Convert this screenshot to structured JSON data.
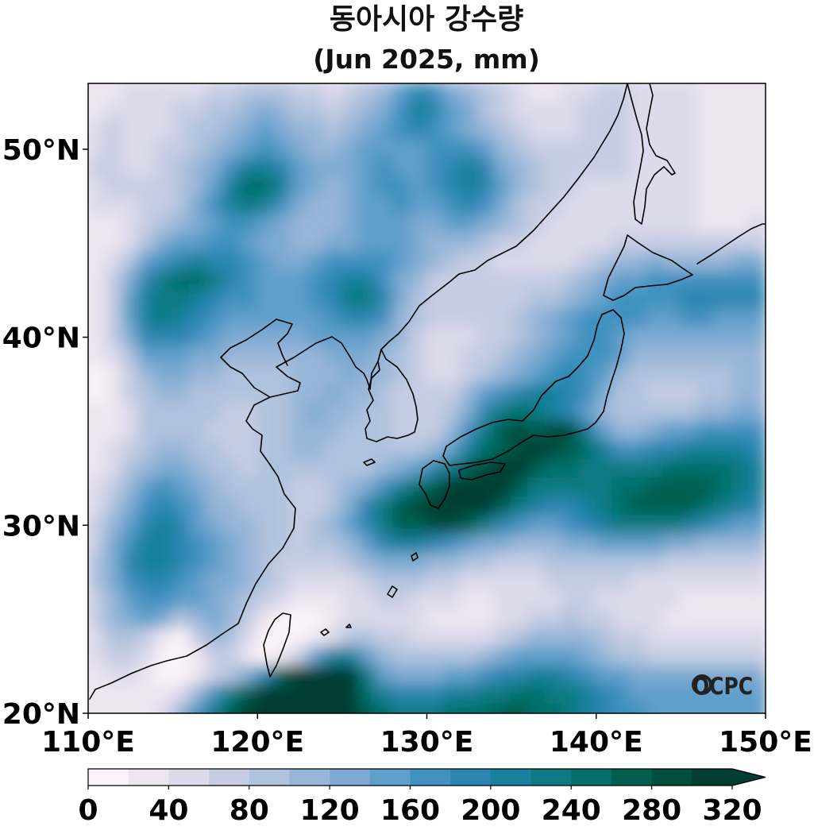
{
  "title": {
    "line1": "동아시아 강수량",
    "line2": "(Jun 2025, mm)"
  },
  "logo": "OCPC",
  "chart_data": {
    "type": "heatmap",
    "title": "동아시아 강수량 (Jun 2025, mm)",
    "xlabel": "",
    "ylabel": "",
    "xlim": [
      110,
      150
    ],
    "ylim": [
      20,
      53.5
    ],
    "x_ticks": [
      {
        "value": 110,
        "label": "110°E"
      },
      {
        "value": 120,
        "label": "120°E"
      },
      {
        "value": 130,
        "label": "130°E"
      },
      {
        "value": 140,
        "label": "140°E"
      },
      {
        "value": 150,
        "label": "150°E"
      }
    ],
    "y_ticks": [
      {
        "value": 20,
        "label": "20°N"
      },
      {
        "value": 30,
        "label": "30°N"
      },
      {
        "value": 40,
        "label": "40°N"
      },
      {
        "value": 50,
        "label": "50°N"
      }
    ],
    "colorbar": {
      "min": 0,
      "max": 320,
      "step": 20,
      "extend": "max",
      "tick_values": [
        0,
        40,
        80,
        120,
        160,
        200,
        240,
        280,
        320
      ],
      "tick_labels": [
        "0",
        "40",
        "80",
        "120",
        "160",
        "200",
        "240",
        "280",
        "320"
      ],
      "colors": [
        "#fbf3fa",
        "#ede6f1",
        "#dcdaeb",
        "#c6cde3",
        "#b0c3de",
        "#98b6d8",
        "#7eaad2",
        "#5f9fcb",
        "#3f91c0",
        "#2a86b0",
        "#17809c",
        "#0b7a83",
        "#05706b",
        "#025f50",
        "#014d3e",
        "#013e31"
      ]
    },
    "grid_step_deg": 1,
    "lon_start": 110,
    "lat_start": 53,
    "grid_mm": [
      [
        30,
        35,
        40,
        40,
        45,
        50,
        55,
        60,
        70,
        80,
        90,
        80,
        70,
        60,
        50,
        60,
        80,
        110,
        150,
        190,
        170,
        130,
        100,
        80,
        60,
        40,
        30,
        30,
        40,
        50,
        60,
        60,
        50,
        45,
        40,
        40,
        35,
        30,
        30,
        30
      ],
      [
        35,
        40,
        45,
        45,
        50,
        60,
        70,
        80,
        90,
        100,
        120,
        110,
        90,
        80,
        70,
        80,
        100,
        130,
        170,
        200,
        190,
        150,
        120,
        90,
        70,
        50,
        40,
        40,
        50,
        60,
        60,
        60,
        50,
        45,
        40,
        40,
        35,
        30,
        30,
        30
      ],
      [
        40,
        60,
        50,
        45,
        55,
        70,
        80,
        90,
        100,
        120,
        140,
        130,
        110,
        100,
        90,
        100,
        120,
        140,
        160,
        180,
        170,
        150,
        130,
        110,
        90,
        70,
        55,
        50,
        55,
        60,
        60,
        60,
        55,
        50,
        45,
        40,
        35,
        30,
        30,
        30
      ],
      [
        50,
        70,
        55,
        50,
        60,
        75,
        90,
        110,
        130,
        150,
        160,
        150,
        130,
        110,
        110,
        120,
        140,
        150,
        150,
        150,
        160,
        170,
        160,
        140,
        110,
        85,
        70,
        60,
        60,
        60,
        60,
        60,
        55,
        50,
        45,
        40,
        35,
        30,
        30,
        30
      ],
      [
        60,
        65,
        55,
        55,
        65,
        80,
        100,
        130,
        170,
        200,
        210,
        180,
        140,
        120,
        120,
        130,
        150,
        160,
        150,
        140,
        160,
        190,
        200,
        180,
        130,
        100,
        80,
        70,
        60,
        60,
        60,
        60,
        55,
        50,
        45,
        40,
        35,
        30,
        30,
        30
      ],
      [
        55,
        60,
        60,
        60,
        70,
        85,
        110,
        150,
        200,
        240,
        250,
        210,
        150,
        120,
        110,
        130,
        150,
        170,
        160,
        150,
        160,
        190,
        210,
        190,
        140,
        100,
        80,
        70,
        60,
        55,
        55,
        55,
        55,
        50,
        45,
        40,
        35,
        30,
        30,
        30
      ],
      [
        40,
        45,
        55,
        65,
        75,
        90,
        120,
        160,
        210,
        230,
        210,
        170,
        130,
        110,
        100,
        120,
        140,
        150,
        160,
        150,
        150,
        170,
        180,
        160,
        120,
        90,
        70,
        60,
        55,
        55,
        55,
        55,
        55,
        50,
        45,
        40,
        35,
        30,
        30,
        30
      ],
      [
        25,
        30,
        45,
        70,
        85,
        100,
        120,
        150,
        170,
        170,
        150,
        130,
        110,
        100,
        110,
        130,
        140,
        150,
        140,
        130,
        130,
        140,
        150,
        130,
        100,
        80,
        65,
        55,
        50,
        50,
        50,
        50,
        50,
        50,
        45,
        40,
        35,
        35,
        35,
        40
      ],
      [
        20,
        25,
        45,
        90,
        120,
        140,
        150,
        160,
        160,
        150,
        130,
        120,
        110,
        110,
        120,
        130,
        140,
        150,
        140,
        120,
        110,
        110,
        100,
        90,
        70,
        60,
        50,
        45,
        45,
        50,
        55,
        60,
        65,
        65,
        60,
        60,
        60,
        60,
        60,
        60
      ],
      [
        25,
        40,
        80,
        140,
        170,
        190,
        200,
        190,
        180,
        160,
        140,
        130,
        130,
        140,
        160,
        170,
        170,
        160,
        150,
        130,
        100,
        80,
        70,
        60,
        55,
        50,
        45,
        45,
        50,
        60,
        80,
        100,
        110,
        120,
        110,
        110,
        110,
        110,
        120,
        130
      ],
      [
        30,
        60,
        120,
        190,
        220,
        240,
        240,
        220,
        190,
        170,
        150,
        140,
        150,
        160,
        190,
        210,
        200,
        170,
        130,
        100,
        70,
        60,
        60,
        60,
        60,
        60,
        65,
        70,
        80,
        100,
        120,
        140,
        150,
        160,
        160,
        170,
        170,
        170,
        170,
        170
      ],
      [
        35,
        70,
        140,
        200,
        230,
        220,
        210,
        190,
        170,
        160,
        150,
        140,
        150,
        160,
        190,
        220,
        220,
        180,
        130,
        90,
        60,
        60,
        60,
        60,
        60,
        70,
        80,
        90,
        110,
        130,
        150,
        160,
        170,
        170,
        170,
        180,
        180,
        180,
        180,
        180
      ],
      [
        35,
        70,
        140,
        200,
        220,
        200,
        180,
        160,
        150,
        140,
        140,
        140,
        140,
        150,
        170,
        190,
        190,
        160,
        110,
        80,
        60,
        60,
        60,
        60,
        70,
        80,
        100,
        120,
        140,
        160,
        170,
        170,
        160,
        150,
        150,
        160,
        160,
        150,
        150,
        150
      ],
      [
        30,
        60,
        120,
        180,
        190,
        180,
        160,
        140,
        130,
        120,
        120,
        120,
        130,
        140,
        140,
        150,
        150,
        130,
        100,
        70,
        55,
        55,
        55,
        60,
        70,
        90,
        110,
        130,
        150,
        170,
        170,
        150,
        130,
        120,
        120,
        120,
        120,
        120,
        120,
        120
      ],
      [
        20,
        40,
        90,
        140,
        150,
        140,
        130,
        120,
        110,
        110,
        110,
        110,
        110,
        110,
        120,
        130,
        130,
        110,
        90,
        70,
        55,
        55,
        60,
        70,
        80,
        100,
        120,
        140,
        160,
        170,
        160,
        140,
        110,
        100,
        100,
        100,
        100,
        100,
        110,
        110
      ],
      [
        15,
        30,
        70,
        110,
        120,
        120,
        110,
        100,
        95,
        90,
        90,
        90,
        100,
        110,
        110,
        120,
        110,
        100,
        80,
        65,
        55,
        55,
        70,
        90,
        100,
        120,
        150,
        170,
        180,
        170,
        140,
        110,
        90,
        80,
        80,
        80,
        85,
        90,
        100,
        110
      ],
      [
        15,
        25,
        60,
        90,
        100,
        100,
        95,
        90,
        80,
        80,
        80,
        90,
        100,
        110,
        120,
        110,
        100,
        90,
        75,
        65,
        60,
        70,
        100,
        140,
        170,
        190,
        200,
        200,
        190,
        160,
        120,
        95,
        80,
        75,
        75,
        75,
        80,
        90,
        100,
        110
      ],
      [
        20,
        25,
        50,
        80,
        90,
        90,
        85,
        80,
        75,
        75,
        80,
        90,
        110,
        120,
        110,
        100,
        95,
        85,
        70,
        65,
        60,
        80,
        120,
        180,
        220,
        240,
        230,
        210,
        180,
        150,
        110,
        90,
        80,
        80,
        85,
        90,
        100,
        110,
        120,
        120
      ],
      [
        20,
        30,
        50,
        80,
        90,
        90,
        80,
        75,
        70,
        70,
        80,
        90,
        110,
        110,
        100,
        90,
        85,
        80,
        70,
        70,
        70,
        100,
        160,
        220,
        260,
        280,
        270,
        280,
        290,
        210,
        140,
        110,
        110,
        120,
        140,
        150,
        160,
        170,
        170,
        170
      ],
      [
        25,
        40,
        60,
        90,
        100,
        100,
        90,
        80,
        70,
        70,
        80,
        90,
        100,
        100,
        90,
        85,
        85,
        80,
        80,
        90,
        110,
        150,
        200,
        240,
        270,
        290,
        300,
        280,
        260,
        240,
        200,
        170,
        170,
        180,
        190,
        200,
        210,
        210,
        200,
        190
      ],
      [
        30,
        50,
        80,
        110,
        130,
        130,
        110,
        90,
        80,
        75,
        80,
        90,
        90,
        85,
        80,
        85,
        95,
        110,
        130,
        150,
        180,
        230,
        270,
        290,
        310,
        300,
        270,
        250,
        240,
        230,
        220,
        220,
        220,
        230,
        240,
        250,
        250,
        240,
        220,
        200
      ],
      [
        40,
        70,
        110,
        140,
        160,
        150,
        130,
        100,
        90,
        85,
        80,
        80,
        75,
        75,
        80,
        100,
        130,
        170,
        210,
        240,
        270,
        300,
        320,
        320,
        300,
        260,
        230,
        220,
        220,
        220,
        230,
        240,
        250,
        260,
        270,
        270,
        260,
        240,
        220,
        200
      ],
      [
        50,
        90,
        130,
        170,
        180,
        170,
        140,
        110,
        100,
        95,
        85,
        80,
        75,
        75,
        90,
        130,
        180,
        230,
        270,
        290,
        310,
        320,
        320,
        300,
        260,
        220,
        200,
        190,
        190,
        200,
        220,
        240,
        260,
        270,
        270,
        260,
        240,
        220,
        200,
        180
      ],
      [
        60,
        110,
        150,
        190,
        200,
        180,
        150,
        120,
        110,
        100,
        90,
        80,
        75,
        80,
        100,
        140,
        190,
        230,
        260,
        270,
        280,
        280,
        260,
        220,
        180,
        160,
        150,
        150,
        160,
        180,
        200,
        220,
        230,
        230,
        220,
        200,
        180,
        160,
        150,
        140
      ],
      [
        70,
        120,
        170,
        200,
        210,
        190,
        160,
        140,
        130,
        110,
        95,
        80,
        75,
        80,
        90,
        110,
        150,
        180,
        200,
        200,
        190,
        170,
        150,
        130,
        120,
        110,
        110,
        110,
        120,
        130,
        140,
        150,
        150,
        140,
        130,
        120,
        110,
        100,
        100,
        100
      ],
      [
        80,
        130,
        180,
        210,
        210,
        190,
        170,
        150,
        130,
        110,
        90,
        75,
        65,
        65,
        70,
        80,
        100,
        120,
        130,
        120,
        110,
        100,
        90,
        80,
        75,
        75,
        75,
        80,
        85,
        90,
        90,
        90,
        85,
        80,
        75,
        70,
        65,
        60,
        60,
        60
      ],
      [
        80,
        120,
        160,
        180,
        180,
        160,
        150,
        130,
        120,
        100,
        80,
        60,
        50,
        45,
        45,
        55,
        70,
        85,
        90,
        80,
        70,
        60,
        55,
        50,
        50,
        50,
        55,
        60,
        65,
        65,
        65,
        60,
        55,
        50,
        45,
        45,
        40,
        40,
        40,
        40
      ],
      [
        70,
        110,
        150,
        170,
        170,
        150,
        140,
        130,
        110,
        90,
        60,
        40,
        30,
        30,
        35,
        45,
        55,
        65,
        65,
        55,
        45,
        40,
        35,
        35,
        40,
        45,
        50,
        55,
        60,
        60,
        55,
        50,
        45,
        40,
        40,
        35,
        35,
        35,
        35,
        35
      ],
      [
        60,
        100,
        130,
        140,
        120,
        90,
        110,
        120,
        100,
        70,
        30,
        15,
        10,
        15,
        25,
        40,
        50,
        55,
        55,
        45,
        35,
        30,
        30,
        35,
        45,
        55,
        65,
        75,
        80,
        75,
        65,
        55,
        45,
        40,
        35,
        35,
        35,
        35,
        35,
        35
      ],
      [
        50,
        80,
        90,
        70,
        30,
        10,
        60,
        100,
        90,
        50,
        15,
        5,
        5,
        20,
        50,
        90,
        80,
        70,
        65,
        55,
        45,
        40,
        45,
        55,
        70,
        85,
        100,
        110,
        110,
        100,
        90,
        75,
        60,
        50,
        45,
        45,
        45,
        45,
        45,
        45
      ],
      [
        40,
        60,
        60,
        40,
        10,
        5,
        20,
        70,
        70,
        30,
        10,
        20,
        70,
        150,
        210,
        200,
        150,
        110,
        95,
        85,
        80,
        80,
        90,
        110,
        130,
        140,
        150,
        150,
        140,
        130,
        110,
        95,
        80,
        70,
        65,
        65,
        65,
        65,
        65,
        65
      ],
      [
        30,
        50,
        40,
        20,
        10,
        10,
        30,
        60,
        80,
        120,
        180,
        260,
        310,
        330,
        330,
        300,
        220,
        150,
        130,
        130,
        130,
        140,
        150,
        160,
        180,
        190,
        200,
        200,
        190,
        170,
        150,
        140,
        130,
        120,
        120,
        120,
        120,
        120,
        120,
        120
      ],
      [
        20,
        30,
        30,
        20,
        20,
        40,
        100,
        170,
        230,
        270,
        310,
        330,
        330,
        330,
        320,
        300,
        250,
        200,
        190,
        190,
        190,
        200,
        210,
        220,
        230,
        240,
        240,
        230,
        220,
        200,
        180,
        160,
        150,
        140,
        140,
        140,
        140,
        140,
        140,
        140
      ],
      [
        20,
        30,
        30,
        30,
        50,
        100,
        160,
        220,
        270,
        300,
        320,
        330,
        330,
        330,
        320,
        300,
        270,
        250,
        230,
        230,
        230,
        240,
        250,
        250,
        260,
        260,
        250,
        240,
        230,
        210,
        190,
        170,
        160,
        150,
        150,
        150,
        150,
        150,
        150,
        150
      ]
    ]
  }
}
